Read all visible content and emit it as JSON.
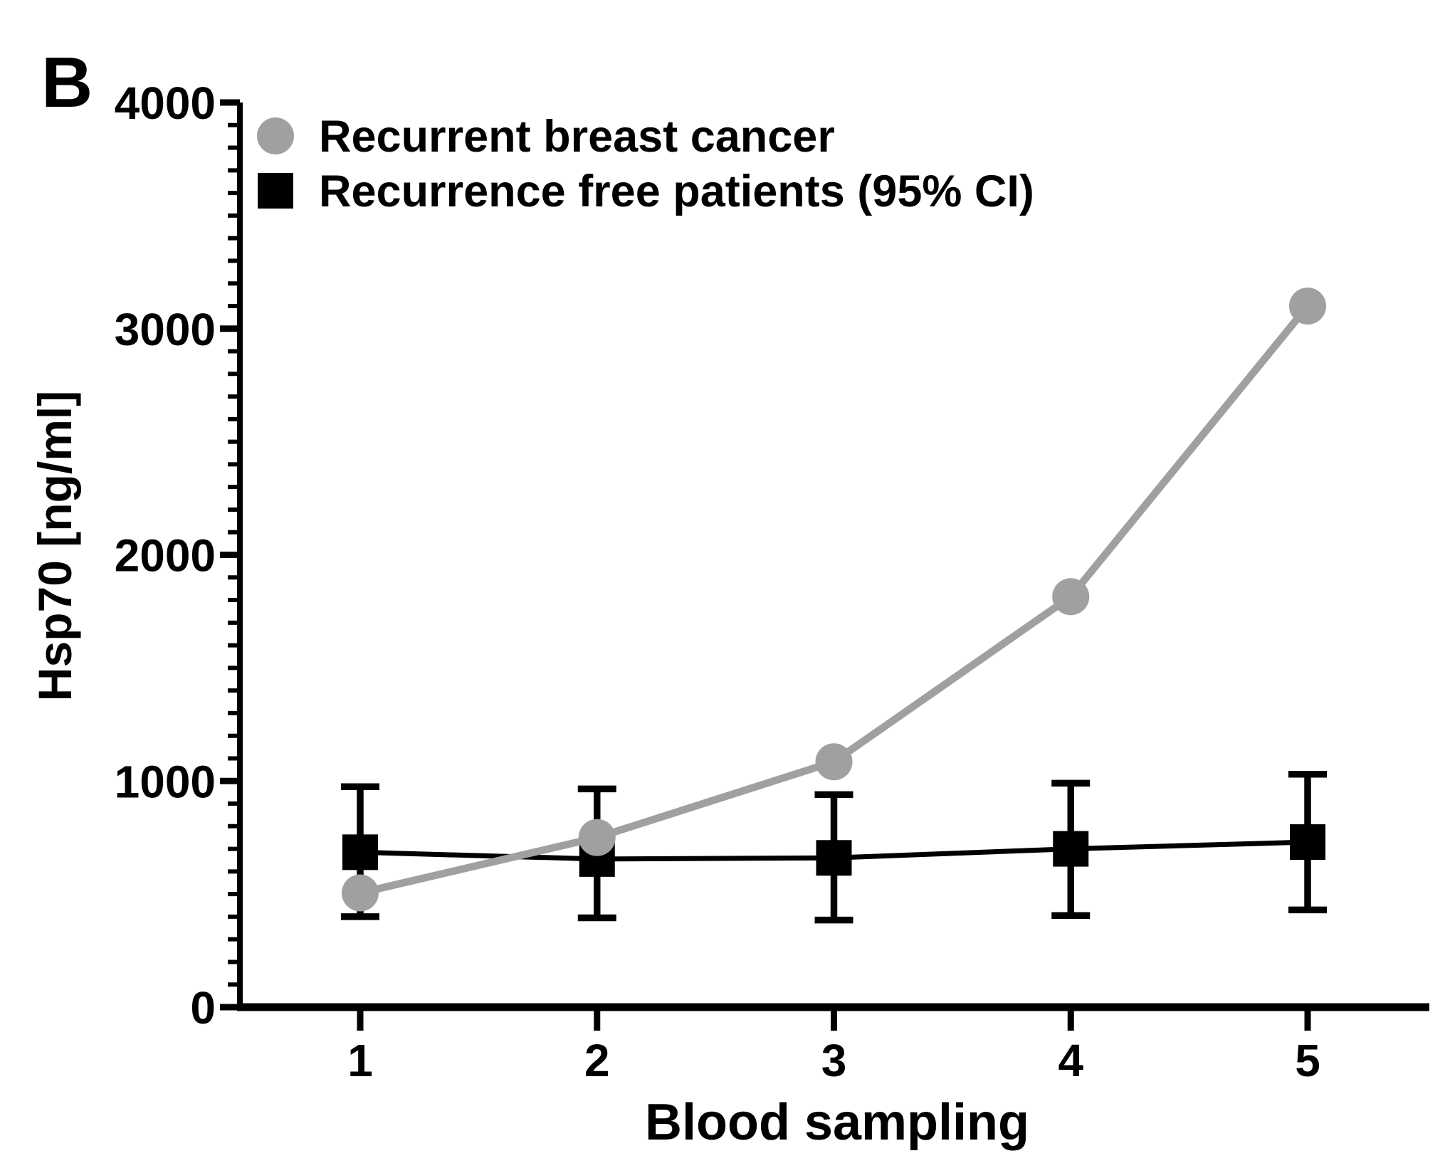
{
  "panel_label": "B",
  "colors": {
    "background": "#ffffff",
    "axis": "#000000",
    "gray_series": "#a0a0a0",
    "black_series": "#000000"
  },
  "chart_data": {
    "type": "line",
    "title": "",
    "xlabel": "Blood sampling",
    "ylabel": "Hsp70 [ng/ml]",
    "x": [
      1,
      2,
      3,
      4,
      5
    ],
    "ylim": [
      0,
      4000
    ],
    "y_major_ticks": [
      0,
      1000,
      2000,
      3000,
      4000
    ],
    "y_minor_interval": 100,
    "grid": false,
    "legend_position": "top-left-inside",
    "series": [
      {
        "name": "Recurrent breast cancer",
        "marker": "circle",
        "color": "#a0a0a0",
        "values": [
          505,
          750,
          1085,
          1815,
          3100
        ]
      },
      {
        "name": "Recurrence free patients (95% CI)",
        "marker": "square",
        "color": "#000000",
        "values": [
          685,
          655,
          660,
          700,
          730
        ],
        "ci_upper": [
          975,
          965,
          940,
          990,
          1030
        ],
        "ci_lower": [
          400,
          395,
          385,
          405,
          430
        ]
      }
    ]
  }
}
